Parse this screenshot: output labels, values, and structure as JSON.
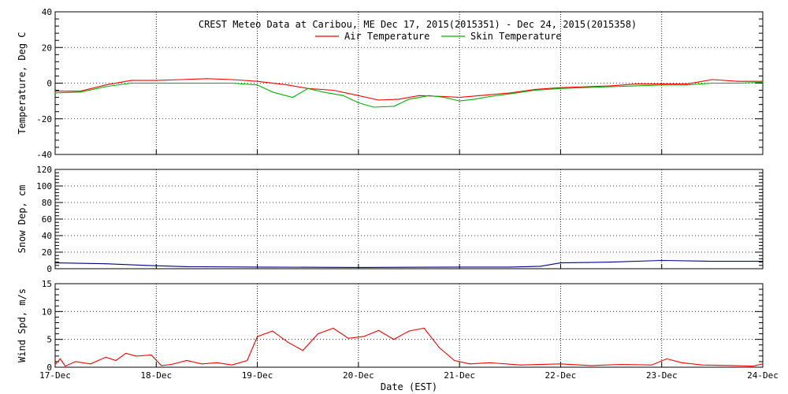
{
  "chart_data": {
    "title": "CREST Meteo Data at Caribou, ME   Dec 17, 2015(2015351) - Dec 24, 2015(2015358)",
    "xlabel": "Date (EST)",
    "x_tick_labels": [
      "17-Dec",
      "18-Dec",
      "19-Dec",
      "20-Dec",
      "21-Dec",
      "22-Dec",
      "23-Dec",
      "24-Dec"
    ],
    "grid": true,
    "panels": [
      {
        "type": "line",
        "ylabel": "Temperature, Deg C",
        "ylim": [
          -40,
          40
        ],
        "yticks": [
          -40,
          -20,
          0,
          20,
          40
        ],
        "legend": "top-center",
        "series": [
          {
            "name": "Air Temperature",
            "color": "#ff0000",
            "points": [
              [
                0,
                -4.5
              ],
              [
                0.25,
                -4.5
              ],
              [
                0.5,
                -1
              ],
              [
                0.75,
                1.5
              ],
              [
                1.0,
                1.5
              ],
              [
                1.25,
                2
              ],
              [
                1.5,
                2.5
              ],
              [
                1.75,
                2
              ],
              [
                2.0,
                1
              ],
              [
                2.3,
                -1
              ],
              [
                2.5,
                -3
              ],
              [
                2.75,
                -4
              ],
              [
                3.0,
                -7
              ],
              [
                3.2,
                -9.5
              ],
              [
                3.4,
                -9
              ],
              [
                3.6,
                -7
              ],
              [
                3.85,
                -7.5
              ],
              [
                4.0,
                -8
              ],
              [
                4.2,
                -7
              ],
              [
                4.5,
                -5.5
              ],
              [
                4.75,
                -3.5
              ],
              [
                5.0,
                -2.5
              ],
              [
                5.25,
                -2
              ],
              [
                5.5,
                -1.5
              ],
              [
                5.75,
                -0.5
              ],
              [
                6.0,
                -0.5
              ],
              [
                6.25,
                -0.5
              ],
              [
                6.5,
                2
              ],
              [
                6.75,
                1
              ],
              [
                7.0,
                1
              ]
            ]
          },
          {
            "name": "Skin Temperature",
            "color": "#00b400",
            "points": [
              [
                0,
                -5.5
              ],
              [
                0.25,
                -5
              ],
              [
                0.5,
                -2
              ],
              [
                0.75,
                0
              ],
              [
                1.0,
                0
              ],
              [
                1.5,
                0
              ],
              [
                1.75,
                0
              ],
              [
                2.0,
                -1
              ],
              [
                2.15,
                -5
              ],
              [
                2.35,
                -8
              ],
              [
                2.5,
                -3
              ],
              [
                2.65,
                -5
              ],
              [
                2.85,
                -7
              ],
              [
                3.0,
                -11
              ],
              [
                3.15,
                -13.5
              ],
              [
                3.35,
                -13
              ],
              [
                3.5,
                -9
              ],
              [
                3.7,
                -7
              ],
              [
                3.85,
                -8
              ],
              [
                4.0,
                -10
              ],
              [
                4.15,
                -9
              ],
              [
                4.3,
                -7.5
              ],
              [
                4.5,
                -6
              ],
              [
                4.75,
                -4
              ],
              [
                5.0,
                -3
              ],
              [
                5.5,
                -2
              ],
              [
                5.75,
                -1.5
              ],
              [
                6.0,
                -1
              ],
              [
                6.25,
                -1
              ],
              [
                6.5,
                0
              ],
              [
                6.75,
                0
              ],
              [
                7.0,
                0.5
              ]
            ]
          }
        ]
      },
      {
        "type": "line",
        "ylabel": "Snow Dep, cm",
        "ylim": [
          0,
          120
        ],
        "yticks": [
          0,
          20,
          40,
          60,
          80,
          100,
          120
        ],
        "series": [
          {
            "color": "#00008b",
            "points": [
              [
                0,
                7
              ],
              [
                0.5,
                6
              ],
              [
                0.9,
                4
              ],
              [
                1.3,
                2.5
              ],
              [
                2.0,
                2
              ],
              [
                3.0,
                1.5
              ],
              [
                4.0,
                2
              ],
              [
                4.5,
                2
              ],
              [
                4.8,
                3
              ],
              [
                5.0,
                7
              ],
              [
                5.5,
                8
              ],
              [
                6.0,
                10
              ],
              [
                6.5,
                9
              ],
              [
                7.0,
                9
              ]
            ]
          }
        ]
      },
      {
        "type": "line",
        "ylabel": "Wind Spd, m/s",
        "ylim": [
          0,
          15
        ],
        "yticks": [
          0,
          5,
          10,
          15
        ],
        "series": [
          {
            "color": "#ff0000",
            "points": [
              [
                0,
                0.5
              ],
              [
                0.05,
                1.5
              ],
              [
                0.1,
                0.2
              ],
              [
                0.2,
                1
              ],
              [
                0.35,
                0.6
              ],
              [
                0.5,
                1.8
              ],
              [
                0.6,
                1.2
              ],
              [
                0.7,
                2.5
              ],
              [
                0.8,
                2
              ],
              [
                0.95,
                2.2
              ],
              [
                1.05,
                0.3
              ],
              [
                1.15,
                0.5
              ],
              [
                1.3,
                1.2
              ],
              [
                1.45,
                0.6
              ],
              [
                1.6,
                0.8
              ],
              [
                1.75,
                0.4
              ],
              [
                1.9,
                1.2
              ],
              [
                2.0,
                5.5
              ],
              [
                2.15,
                6.5
              ],
              [
                2.3,
                4.5
              ],
              [
                2.45,
                3
              ],
              [
                2.6,
                6
              ],
              [
                2.75,
                7
              ],
              [
                2.9,
                5.2
              ],
              [
                3.05,
                5.5
              ],
              [
                3.2,
                6.6
              ],
              [
                3.35,
                5
              ],
              [
                3.5,
                6.5
              ],
              [
                3.65,
                7
              ],
              [
                3.8,
                3.5
              ],
              [
                3.95,
                1.2
              ],
              [
                4.1,
                0.6
              ],
              [
                4.3,
                0.8
              ],
              [
                4.6,
                0.4
              ],
              [
                5.0,
                0.6
              ],
              [
                5.3,
                0.3
              ],
              [
                5.6,
                0.5
              ],
              [
                5.9,
                0.4
              ],
              [
                6.05,
                1.5
              ],
              [
                6.2,
                0.8
              ],
              [
                6.4,
                0.4
              ],
              [
                6.7,
                0.3
              ],
              [
                6.9,
                0.2
              ],
              [
                7.0,
                0.6
              ]
            ]
          }
        ]
      }
    ]
  }
}
